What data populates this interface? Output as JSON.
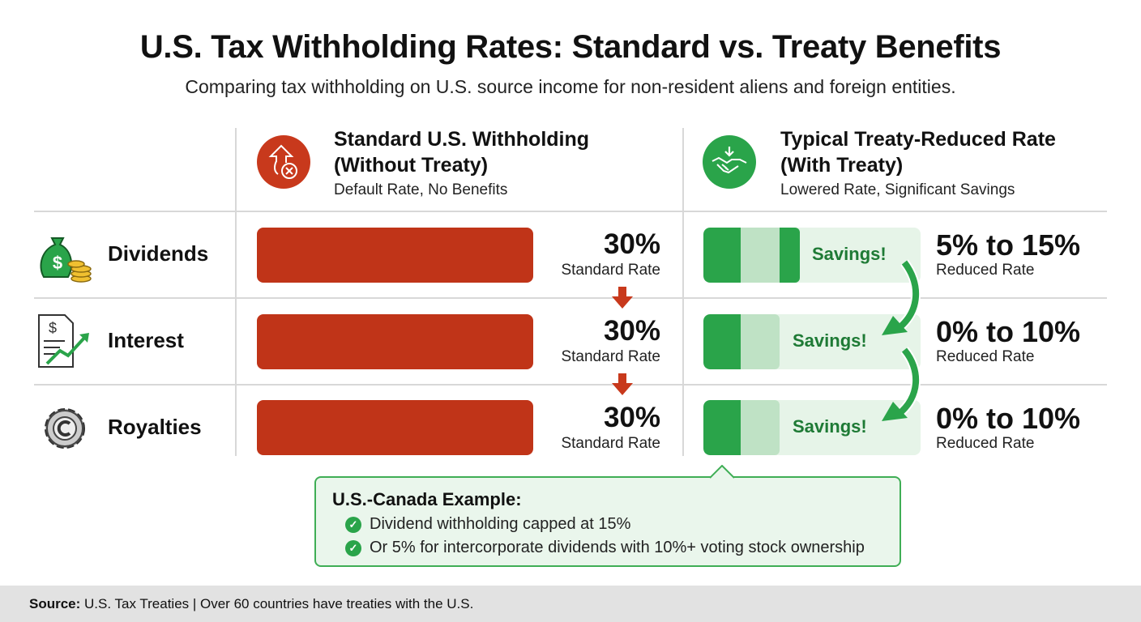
{
  "title": "U.S. Tax Withholding Rates: Standard vs. Treaty Benefits",
  "subtitle": "Comparing tax withholding on U.S. source income for non-resident aliens and foreign entities.",
  "columns": {
    "standard": {
      "title_line1": "Standard U.S. Withholding",
      "title_line2": "(Without Treaty)",
      "subtitle": "Default Rate, No Benefits",
      "icon": "arrow-up-x-icon",
      "color": "#c03418"
    },
    "treaty": {
      "title_line1": "Typical Treaty-Reduced Rate",
      "title_line2": "(With Treaty)",
      "subtitle": "Lowered Rate, Significant Savings",
      "icon": "handshake-icon",
      "color": "#2aa44a"
    }
  },
  "rows": [
    {
      "label": "Dividends",
      "icon": "money-bag-icon",
      "standard_rate": "30%",
      "standard_label": "Standard Rate",
      "treaty_rate": "5% to 15%",
      "treaty_label": "Reduced Rate",
      "savings": "Savings!"
    },
    {
      "label": "Interest",
      "icon": "document-chart-icon",
      "standard_rate": "30%",
      "standard_label": "Standard Rate",
      "treaty_rate": "0% to 10%",
      "treaty_label": "Reduced Rate",
      "savings": "Savings!"
    },
    {
      "label": "Royalties",
      "icon": "copyright-gear-icon",
      "standard_rate": "30%",
      "standard_label": "Standard Rate",
      "treaty_rate": "0% to 10%",
      "treaty_label": "Reduced Rate",
      "savings": "Savings!"
    }
  ],
  "callout": {
    "title": "U.S.-Canada Example:",
    "items": [
      "Dividend withholding capped at 15%",
      "Or 5% for intercorporate dividends with 10%+ voting stock ownership"
    ]
  },
  "footer": {
    "source_label": "Source:",
    "source_text": " U.S. Tax Treaties | Over 60 countries have treaties with the U.S."
  }
}
